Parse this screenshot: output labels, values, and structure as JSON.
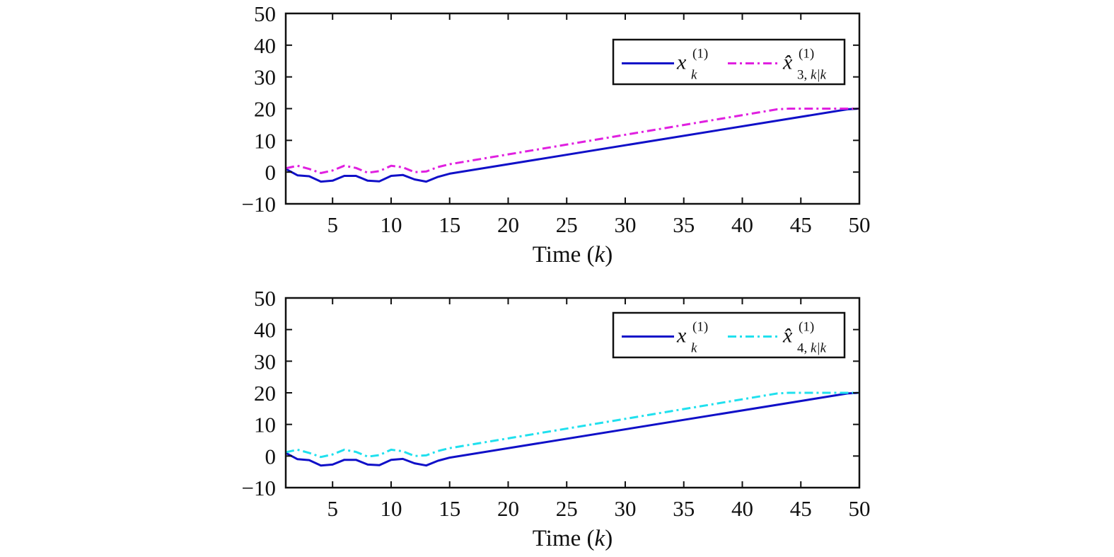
{
  "colors": {
    "axis": "#111111",
    "background": "#ffffff"
  },
  "chart_data": [
    {
      "type": "line",
      "xlabel": "Time (k)",
      "xlabel_parts": {
        "pre": "Time (",
        "var": "k",
        "post": ")"
      },
      "ylabel": "",
      "xlim": [
        1,
        50
      ],
      "ylim": [
        -10,
        50
      ],
      "xticks": [
        5,
        10,
        15,
        20,
        25,
        30,
        35,
        40,
        45,
        50
      ],
      "yticks": [
        -10,
        0,
        10,
        20,
        30,
        40,
        50
      ],
      "tick_labels_y": [
        "−10",
        "0",
        "10",
        "20",
        "30",
        "40",
        "50"
      ],
      "grid": false,
      "legend_position": "top-right",
      "legend": [
        {
          "main": "x",
          "sup": "(1)",
          "sub": "k",
          "sub_prefix": ""
        },
        {
          "main": "x̂",
          "sup": "(1)",
          "sub": "k|k",
          "sub_prefix": "3, "
        }
      ],
      "series": [
        {
          "name": "x_k^(1)",
          "color": "#1010c8",
          "style": "solid",
          "x": [
            1,
            2,
            3,
            4,
            5,
            6,
            7,
            8,
            9,
            10,
            11,
            12,
            13,
            14,
            15,
            49,
            50
          ],
          "y": [
            1,
            -1,
            -1.3,
            -3,
            -2.7,
            -1.2,
            -1.2,
            -2.7,
            -2.9,
            -1.2,
            -0.9,
            -2.3,
            -3,
            -1.5,
            -0.5,
            19.8,
            20
          ]
        },
        {
          "name": "x̂_{3,k|k}^(1)",
          "color": "#e020e0",
          "style": "dashdot",
          "x": [
            1,
            2,
            3,
            4,
            5,
            6,
            7,
            8,
            9,
            10,
            11,
            12,
            13,
            14,
            15,
            43,
            44,
            50
          ],
          "y": [
            1.2,
            2,
            1,
            -0.3,
            0.5,
            2,
            1.3,
            -0.2,
            0.3,
            2,
            1.5,
            0,
            0.2,
            1.6,
            2.5,
            19.8,
            20,
            20
          ]
        }
      ]
    },
    {
      "type": "line",
      "xlabel": "Time (k)",
      "xlabel_parts": {
        "pre": "Time (",
        "var": "k",
        "post": ")"
      },
      "ylabel": "",
      "xlim": [
        1,
        50
      ],
      "ylim": [
        -10,
        50
      ],
      "xticks": [
        5,
        10,
        15,
        20,
        25,
        30,
        35,
        40,
        45,
        50
      ],
      "yticks": [
        -10,
        0,
        10,
        20,
        30,
        40,
        50
      ],
      "tick_labels_y": [
        "−10",
        "0",
        "10",
        "20",
        "30",
        "40",
        "50"
      ],
      "grid": false,
      "legend_position": "top-right",
      "legend": [
        {
          "main": "x",
          "sup": "(1)",
          "sub": "k",
          "sub_prefix": ""
        },
        {
          "main": "x̂",
          "sup": "(1)",
          "sub": "k|k",
          "sub_prefix": "4, "
        }
      ],
      "series": [
        {
          "name": "x_k^(1)",
          "color": "#1010c8",
          "style": "solid",
          "x": [
            1,
            2,
            3,
            4,
            5,
            6,
            7,
            8,
            9,
            10,
            11,
            12,
            13,
            14,
            15,
            49,
            50
          ],
          "y": [
            1,
            -1,
            -1.3,
            -3,
            -2.7,
            -1.2,
            -1.2,
            -2.7,
            -2.9,
            -1.2,
            -0.9,
            -2.3,
            -3,
            -1.5,
            -0.5,
            19.8,
            20
          ]
        },
        {
          "name": "x̂_{4,k|k}^(1)",
          "color": "#20e0ee",
          "style": "dashdot",
          "x": [
            1,
            2,
            3,
            4,
            5,
            6,
            7,
            8,
            9,
            10,
            11,
            12,
            13,
            14,
            15,
            43,
            44,
            50
          ],
          "y": [
            1.2,
            2,
            1,
            -0.3,
            0.5,
            2,
            1.3,
            -0.2,
            0.3,
            2,
            1.5,
            0,
            0.2,
            1.6,
            2.5,
            19.8,
            20,
            20
          ]
        }
      ]
    }
  ]
}
